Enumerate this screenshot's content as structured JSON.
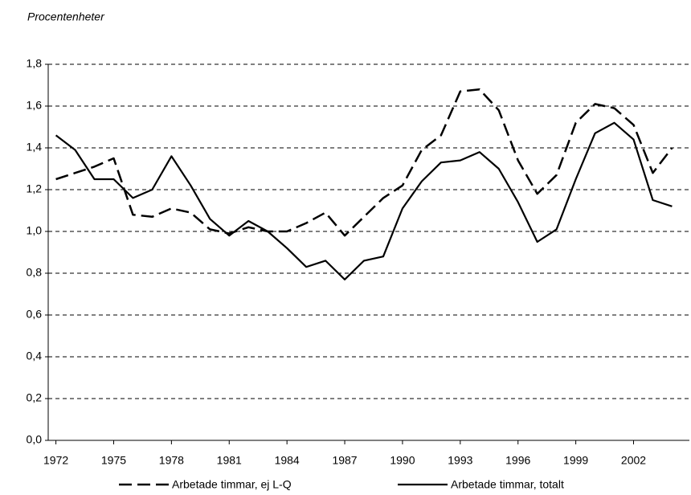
{
  "chart_data": {
    "type": "line",
    "y_label": "Procentenheter",
    "x": [
      1972,
      1973,
      1974,
      1975,
      1976,
      1977,
      1978,
      1979,
      1980,
      1981,
      1982,
      1983,
      1984,
      1985,
      1986,
      1987,
      1988,
      1989,
      1990,
      1991,
      1992,
      1993,
      1994,
      1995,
      1996,
      1997,
      1998,
      1999,
      2000,
      2001,
      2002,
      2003,
      2004
    ],
    "xlim": [
      1971.6,
      2004.9
    ],
    "xticks": [
      1972,
      1975,
      1978,
      1981,
      1984,
      1987,
      1990,
      1993,
      1996,
      1999,
      2002
    ],
    "ylim": [
      0,
      1.8
    ],
    "yticks": [
      {
        "value": 0,
        "label": "0,0"
      },
      {
        "value": 0.2,
        "label": "0,2"
      },
      {
        "value": 0.4,
        "label": "0,4"
      },
      {
        "value": 0.6,
        "label": "0,6"
      },
      {
        "value": 0.8,
        "label": "0,8"
      },
      {
        "value": 1.0,
        "label": "1,0"
      },
      {
        "value": 1.2,
        "label": "1,2"
      },
      {
        "value": 1.4,
        "label": "1,4"
      },
      {
        "value": 1.6,
        "label": "1,6"
      },
      {
        "value": 1.8,
        "label": "1,8"
      }
    ],
    "grid": true,
    "series": [
      {
        "name": "Arbetade timmar, ej L-Q",
        "color": "#000000",
        "dash": true,
        "values": [
          1.25,
          1.28,
          1.31,
          1.35,
          1.08,
          1.07,
          1.11,
          1.09,
          1.01,
          0.99,
          1.02,
          1.0,
          1.0,
          1.04,
          1.09,
          0.98,
          1.07,
          1.16,
          1.22,
          1.39,
          1.46,
          1.67,
          1.68,
          1.58,
          1.34,
          1.18,
          1.27,
          1.52,
          1.61,
          1.59,
          1.51,
          1.28,
          1.4
        ]
      },
      {
        "name": "Arbetade timmar, totalt",
        "color": "#000000",
        "dash": false,
        "values": [
          1.46,
          1.39,
          1.25,
          1.25,
          1.16,
          1.2,
          1.36,
          1.22,
          1.06,
          0.98,
          1.05,
          1.0,
          0.92,
          0.83,
          0.86,
          0.77,
          0.86,
          0.88,
          1.11,
          1.24,
          1.33,
          1.34,
          1.38,
          1.3,
          1.14,
          0.95,
          1.01,
          1.25,
          1.47,
          1.52,
          1.44,
          1.15,
          1.12
        ]
      }
    ]
  }
}
